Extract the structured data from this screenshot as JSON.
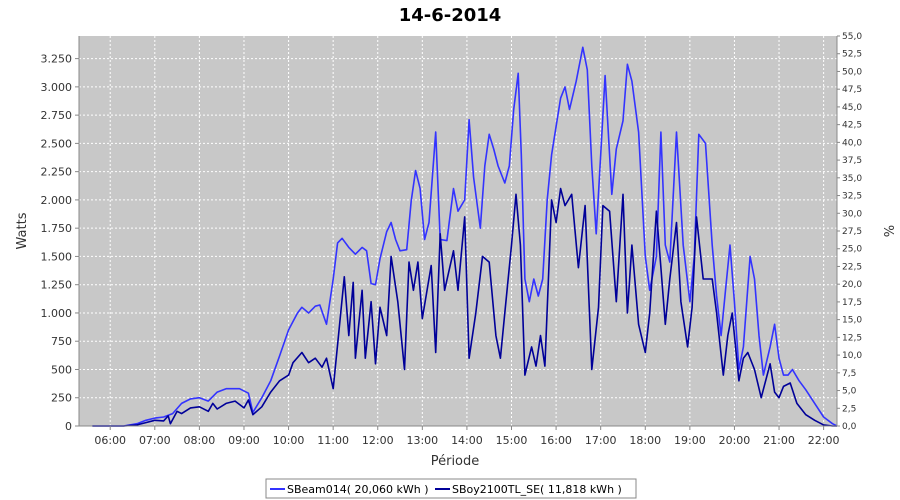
{
  "chart_data": {
    "type": "line",
    "title": "14-6-2014",
    "xlabel": "Période",
    "ylabel": "Watts",
    "y2label": "%",
    "x_unit": "hour",
    "xlim": [
      5.3,
      22.3
    ],
    "ylim": [
      0,
      3450
    ],
    "y2lim": [
      0,
      55
    ],
    "grid": true,
    "legend_position": "bottom",
    "x_ticks": [
      {
        "v": 6,
        "label": "06:00"
      },
      {
        "v": 7,
        "label": "07:00"
      },
      {
        "v": 8,
        "label": "08:00"
      },
      {
        "v": 9,
        "label": "09:00"
      },
      {
        "v": 10,
        "label": "10:00"
      },
      {
        "v": 11,
        "label": "11:00"
      },
      {
        "v": 12,
        "label": "12:00"
      },
      {
        "v": 13,
        "label": "13:00"
      },
      {
        "v": 14,
        "label": "14:00"
      },
      {
        "v": 15,
        "label": "15:00"
      },
      {
        "v": 16,
        "label": "16:00"
      },
      {
        "v": 17,
        "label": "17:00"
      },
      {
        "v": 18,
        "label": "18:00"
      },
      {
        "v": 19,
        "label": "19:00"
      },
      {
        "v": 20,
        "label": "20:00"
      },
      {
        "v": 21,
        "label": "21:00"
      },
      {
        "v": 22,
        "label": "22:00"
      }
    ],
    "y_ticks": [
      {
        "v": 0,
        "label": "0"
      },
      {
        "v": 250,
        "label": "250"
      },
      {
        "v": 500,
        "label": "500"
      },
      {
        "v": 750,
        "label": "750"
      },
      {
        "v": 1000,
        "label": "1.000"
      },
      {
        "v": 1250,
        "label": "1.250"
      },
      {
        "v": 1500,
        "label": "1.500"
      },
      {
        "v": 1750,
        "label": "1.750"
      },
      {
        "v": 2000,
        "label": "2.000"
      },
      {
        "v": 2250,
        "label": "2.250"
      },
      {
        "v": 2500,
        "label": "2.500"
      },
      {
        "v": 2750,
        "label": "2.750"
      },
      {
        "v": 3000,
        "label": "3.000"
      },
      {
        "v": 3250,
        "label": "3.250"
      }
    ],
    "y2_ticks": [
      {
        "v": 0,
        "label": "0,0"
      },
      {
        "v": 2.5,
        "label": "2,5"
      },
      {
        "v": 5,
        "label": "5,0"
      },
      {
        "v": 7.5,
        "label": "7,5"
      },
      {
        "v": 10,
        "label": "10,0"
      },
      {
        "v": 12.5,
        "label": "12,5"
      },
      {
        "v": 15,
        "label": "15,0"
      },
      {
        "v": 17.5,
        "label": "17,5"
      },
      {
        "v": 20,
        "label": "20,0"
      },
      {
        "v": 22.5,
        "label": "22,5"
      },
      {
        "v": 25,
        "label": "25,0"
      },
      {
        "v": 27.5,
        "label": "27,5"
      },
      {
        "v": 30,
        "label": "30,0"
      },
      {
        "v": 32.5,
        "label": "32,5"
      },
      {
        "v": 35,
        "label": "35,0"
      },
      {
        "v": 37.5,
        "label": "37,5"
      },
      {
        "v": 40,
        "label": "40,0"
      },
      {
        "v": 42.5,
        "label": "42,5"
      },
      {
        "v": 45,
        "label": "45,0"
      },
      {
        "v": 47.5,
        "label": "47,5"
      },
      {
        "v": 50,
        "label": "50,0"
      },
      {
        "v": 52.5,
        "label": "52,5"
      },
      {
        "v": 55,
        "label": "55,0"
      }
    ],
    "series": [
      {
        "name": "SBeam014( 20,060 kWh )",
        "color": "#3333ff",
        "points": [
          [
            5.6,
            0
          ],
          [
            6.3,
            0
          ],
          [
            6.6,
            20
          ],
          [
            6.8,
            50
          ],
          [
            7.0,
            70
          ],
          [
            7.2,
            80
          ],
          [
            7.4,
            110
          ],
          [
            7.6,
            200
          ],
          [
            7.8,
            240
          ],
          [
            8.0,
            250
          ],
          [
            8.2,
            220
          ],
          [
            8.4,
            300
          ],
          [
            8.6,
            330
          ],
          [
            8.9,
            330
          ],
          [
            9.1,
            290
          ],
          [
            9.2,
            120
          ],
          [
            9.4,
            250
          ],
          [
            9.6,
            400
          ],
          [
            9.8,
            620
          ],
          [
            10.0,
            850
          ],
          [
            10.2,
            1000
          ],
          [
            10.3,
            1050
          ],
          [
            10.45,
            1000
          ],
          [
            10.6,
            1060
          ],
          [
            10.7,
            1070
          ],
          [
            10.85,
            900
          ],
          [
            11.0,
            1300
          ],
          [
            11.1,
            1620
          ],
          [
            11.2,
            1660
          ],
          [
            11.35,
            1580
          ],
          [
            11.5,
            1520
          ],
          [
            11.65,
            1580
          ],
          [
            11.75,
            1550
          ],
          [
            11.85,
            1260
          ],
          [
            11.95,
            1250
          ],
          [
            12.05,
            1480
          ],
          [
            12.2,
            1720
          ],
          [
            12.3,
            1800
          ],
          [
            12.4,
            1650
          ],
          [
            12.5,
            1550
          ],
          [
            12.65,
            1560
          ],
          [
            12.75,
            1990
          ],
          [
            12.85,
            2260
          ],
          [
            12.95,
            2100
          ],
          [
            13.05,
            1650
          ],
          [
            13.15,
            1800
          ],
          [
            13.3,
            2600
          ],
          [
            13.4,
            1650
          ],
          [
            13.55,
            1640
          ],
          [
            13.7,
            2100
          ],
          [
            13.8,
            1900
          ],
          [
            13.95,
            2000
          ],
          [
            14.05,
            2710
          ],
          [
            14.15,
            2200
          ],
          [
            14.3,
            1750
          ],
          [
            14.4,
            2300
          ],
          [
            14.5,
            2580
          ],
          [
            14.6,
            2450
          ],
          [
            14.7,
            2300
          ],
          [
            14.85,
            2150
          ],
          [
            14.95,
            2300
          ],
          [
            15.05,
            2800
          ],
          [
            15.15,
            3120
          ],
          [
            15.22,
            2400
          ],
          [
            15.3,
            1300
          ],
          [
            15.4,
            1100
          ],
          [
            15.5,
            1300
          ],
          [
            15.6,
            1150
          ],
          [
            15.7,
            1300
          ],
          [
            15.8,
            2000
          ],
          [
            15.9,
            2400
          ],
          [
            16.0,
            2650
          ],
          [
            16.1,
            2900
          ],
          [
            16.2,
            3000
          ],
          [
            16.3,
            2800
          ],
          [
            16.45,
            3050
          ],
          [
            16.6,
            3350
          ],
          [
            16.7,
            3150
          ],
          [
            16.8,
            2300
          ],
          [
            16.9,
            1700
          ],
          [
            17.0,
            2400
          ],
          [
            17.1,
            3100
          ],
          [
            17.25,
            2050
          ],
          [
            17.35,
            2450
          ],
          [
            17.5,
            2700
          ],
          [
            17.6,
            3200
          ],
          [
            17.7,
            3050
          ],
          [
            17.85,
            2600
          ],
          [
            18.0,
            1500
          ],
          [
            18.1,
            1200
          ],
          [
            18.25,
            1500
          ],
          [
            18.35,
            2600
          ],
          [
            18.45,
            1600
          ],
          [
            18.55,
            1450
          ],
          [
            18.7,
            2600
          ],
          [
            18.85,
            1600
          ],
          [
            19.0,
            1100
          ],
          [
            19.1,
            1500
          ],
          [
            19.2,
            2580
          ],
          [
            19.35,
            2500
          ],
          [
            19.5,
            1600
          ],
          [
            19.6,
            1150
          ],
          [
            19.7,
            800
          ],
          [
            19.8,
            1200
          ],
          [
            19.9,
            1600
          ],
          [
            20.0,
            1100
          ],
          [
            20.1,
            500
          ],
          [
            20.2,
            700
          ],
          [
            20.35,
            1500
          ],
          [
            20.45,
            1300
          ],
          [
            20.55,
            800
          ],
          [
            20.65,
            450
          ],
          [
            20.8,
            700
          ],
          [
            20.9,
            900
          ],
          [
            21.0,
            600
          ],
          [
            21.1,
            450
          ],
          [
            21.2,
            450
          ],
          [
            21.3,
            500
          ],
          [
            21.45,
            400
          ],
          [
            21.6,
            320
          ],
          [
            21.8,
            200
          ],
          [
            22.0,
            80
          ],
          [
            22.2,
            20
          ],
          [
            22.3,
            0
          ]
        ]
      },
      {
        "name": "SBoy2100TL_SE( 11,818 kWh )",
        "color": "#000099",
        "points": [
          [
            5.6,
            0
          ],
          [
            6.3,
            0
          ],
          [
            6.6,
            10
          ],
          [
            6.8,
            30
          ],
          [
            7.0,
            50
          ],
          [
            7.2,
            45
          ],
          [
            7.3,
            90
          ],
          [
            7.35,
            20
          ],
          [
            7.5,
            130
          ],
          [
            7.6,
            110
          ],
          [
            7.8,
            160
          ],
          [
            8.0,
            170
          ],
          [
            8.2,
            130
          ],
          [
            8.3,
            200
          ],
          [
            8.4,
            150
          ],
          [
            8.6,
            200
          ],
          [
            8.8,
            220
          ],
          [
            9.0,
            160
          ],
          [
            9.1,
            230
          ],
          [
            9.2,
            100
          ],
          [
            9.4,
            170
          ],
          [
            9.6,
            300
          ],
          [
            9.8,
            400
          ],
          [
            10.0,
            450
          ],
          [
            10.1,
            560
          ],
          [
            10.3,
            650
          ],
          [
            10.45,
            560
          ],
          [
            10.6,
            600
          ],
          [
            10.75,
            520
          ],
          [
            10.85,
            600
          ],
          [
            11.0,
            330
          ],
          [
            11.1,
            720
          ],
          [
            11.25,
            1320
          ],
          [
            11.35,
            800
          ],
          [
            11.45,
            1270
          ],
          [
            11.5,
            600
          ],
          [
            11.65,
            1200
          ],
          [
            11.72,
            600
          ],
          [
            11.85,
            1100
          ],
          [
            11.95,
            550
          ],
          [
            12.05,
            1050
          ],
          [
            12.2,
            800
          ],
          [
            12.3,
            1500
          ],
          [
            12.45,
            1100
          ],
          [
            12.6,
            500
          ],
          [
            12.7,
            1450
          ],
          [
            12.8,
            1200
          ],
          [
            12.9,
            1450
          ],
          [
            13.0,
            950
          ],
          [
            13.2,
            1420
          ],
          [
            13.3,
            650
          ],
          [
            13.4,
            1700
          ],
          [
            13.5,
            1200
          ],
          [
            13.7,
            1550
          ],
          [
            13.8,
            1200
          ],
          [
            13.95,
            1850
          ],
          [
            14.05,
            600
          ],
          [
            14.2,
            1000
          ],
          [
            14.35,
            1500
          ],
          [
            14.5,
            1450
          ],
          [
            14.65,
            800
          ],
          [
            14.75,
            600
          ],
          [
            14.85,
            1000
          ],
          [
            15.0,
            1600
          ],
          [
            15.1,
            2050
          ],
          [
            15.2,
            1600
          ],
          [
            15.3,
            450
          ],
          [
            15.45,
            700
          ],
          [
            15.55,
            530
          ],
          [
            15.65,
            800
          ],
          [
            15.75,
            530
          ],
          [
            15.9,
            2000
          ],
          [
            16.0,
            1800
          ],
          [
            16.1,
            2100
          ],
          [
            16.2,
            1950
          ],
          [
            16.35,
            2050
          ],
          [
            16.5,
            1400
          ],
          [
            16.65,
            1950
          ],
          [
            16.8,
            500
          ],
          [
            16.95,
            1050
          ],
          [
            17.05,
            1950
          ],
          [
            17.2,
            1900
          ],
          [
            17.35,
            1100
          ],
          [
            17.5,
            2050
          ],
          [
            17.6,
            1000
          ],
          [
            17.7,
            1600
          ],
          [
            17.85,
            900
          ],
          [
            18.0,
            650
          ],
          [
            18.1,
            1000
          ],
          [
            18.25,
            1900
          ],
          [
            18.35,
            1400
          ],
          [
            18.45,
            900
          ],
          [
            18.55,
            1300
          ],
          [
            18.7,
            1800
          ],
          [
            18.8,
            1100
          ],
          [
            18.95,
            700
          ],
          [
            19.05,
            1050
          ],
          [
            19.15,
            1850
          ],
          [
            19.3,
            1300
          ],
          [
            19.5,
            1300
          ],
          [
            19.6,
            1000
          ],
          [
            19.75,
            450
          ],
          [
            19.85,
            800
          ],
          [
            19.95,
            1000
          ],
          [
            20.1,
            400
          ],
          [
            20.2,
            600
          ],
          [
            20.3,
            650
          ],
          [
            20.45,
            500
          ],
          [
            20.6,
            250
          ],
          [
            20.8,
            550
          ],
          [
            20.9,
            300
          ],
          [
            21.0,
            250
          ],
          [
            21.1,
            350
          ],
          [
            21.25,
            380
          ],
          [
            21.4,
            200
          ],
          [
            21.6,
            100
          ],
          [
            21.8,
            50
          ],
          [
            22.0,
            10
          ],
          [
            22.2,
            0
          ],
          [
            22.3,
            0
          ]
        ]
      }
    ]
  }
}
